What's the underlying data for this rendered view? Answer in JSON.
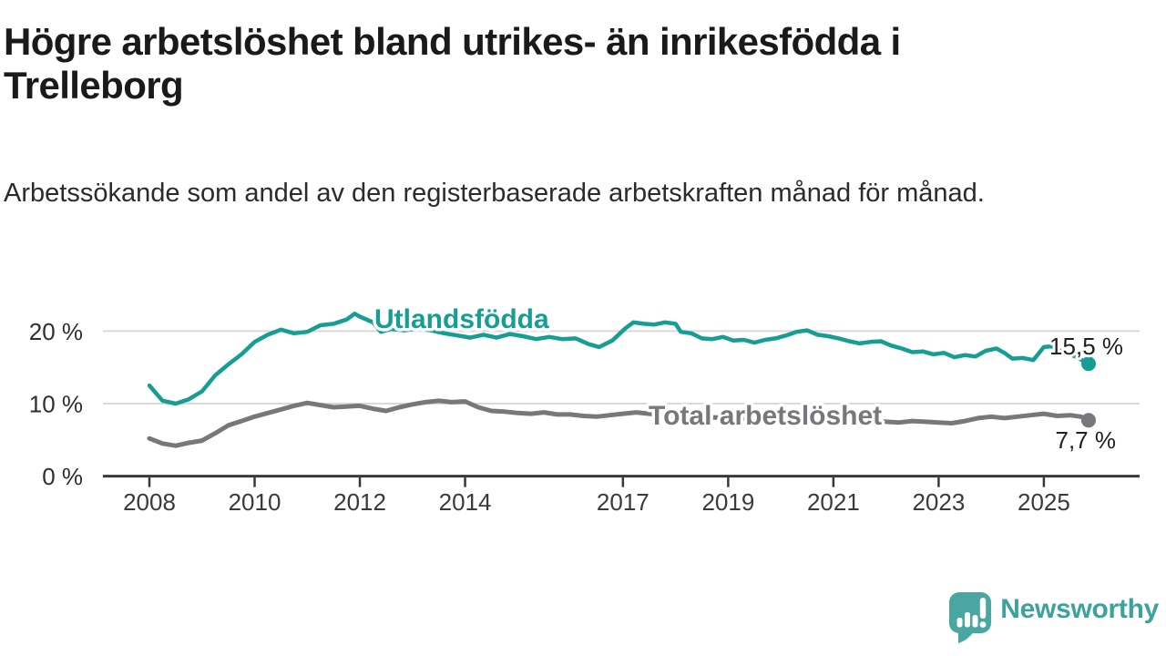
{
  "header": {
    "title": "Högre arbetslöshet bland utrikes- än inrikesfödda i Trelleborg",
    "subtitle": "Arbetssökande som andel av den registerbaserade arbetskraften månad för månad."
  },
  "chart_data": {
    "type": "line",
    "title": "Högre arbetslöshet bland utrikes- än inrikesfödda i Trelleborg",
    "subtitle": "Arbetssökande som andel av den registerbaserade arbetskraften månad för månad.",
    "x_axis": {
      "tick_years": [
        2008,
        2010,
        2012,
        2014,
        2017,
        2019,
        2021,
        2023,
        2025
      ],
      "tick_labels": [
        "2008",
        "2010",
        "2012",
        "2014",
        "2017",
        "2019",
        "2021",
        "2023",
        "2025"
      ],
      "range": [
        2007.1,
        2026.8
      ]
    },
    "y_axis": {
      "tick_values": [
        20,
        10,
        0
      ],
      "tick_labels": [
        "20 %",
        "10 %",
        "0 %"
      ],
      "gridlines": [
        20,
        10
      ],
      "range": [
        0,
        23
      ],
      "unit": "%"
    },
    "legend_position": "inline-labels",
    "grid": true,
    "series": [
      {
        "name": "Utlandsfödda",
        "color": "#169d94",
        "end_label": "15,5 %",
        "end_value": 15.5,
        "points": [
          [
            2008.0,
            12.5
          ],
          [
            2008.25,
            10.4
          ],
          [
            2008.5,
            10.0
          ],
          [
            2008.75,
            10.6
          ],
          [
            2009.0,
            11.7
          ],
          [
            2009.25,
            13.9
          ],
          [
            2009.5,
            15.4
          ],
          [
            2009.75,
            16.8
          ],
          [
            2010.0,
            18.5
          ],
          [
            2010.25,
            19.5
          ],
          [
            2010.5,
            20.2
          ],
          [
            2010.75,
            19.7
          ],
          [
            2011.0,
            19.9
          ],
          [
            2011.25,
            20.8
          ],
          [
            2011.5,
            21.0
          ],
          [
            2011.75,
            21.6
          ],
          [
            2011.9,
            22.4
          ],
          [
            2012.0,
            22.0
          ],
          [
            2012.25,
            21.2
          ],
          [
            2012.4,
            19.9
          ],
          [
            2012.6,
            20.3
          ],
          [
            2012.85,
            20.1
          ],
          [
            2013.1,
            20.4
          ],
          [
            2013.35,
            20.1
          ],
          [
            2013.6,
            19.7
          ],
          [
            2013.85,
            19.4
          ],
          [
            2014.1,
            19.1
          ],
          [
            2014.35,
            19.5
          ],
          [
            2014.6,
            19.1
          ],
          [
            2014.85,
            19.6
          ],
          [
            2015.1,
            19.3
          ],
          [
            2015.35,
            18.9
          ],
          [
            2015.6,
            19.2
          ],
          [
            2015.85,
            18.9
          ],
          [
            2016.1,
            19.0
          ],
          [
            2016.35,
            18.2
          ],
          [
            2016.55,
            17.8
          ],
          [
            2016.8,
            18.7
          ],
          [
            2017.05,
            20.4
          ],
          [
            2017.2,
            21.2
          ],
          [
            2017.4,
            21.0
          ],
          [
            2017.6,
            20.9
          ],
          [
            2017.8,
            21.2
          ],
          [
            2018.0,
            21.0
          ],
          [
            2018.1,
            19.9
          ],
          [
            2018.3,
            19.7
          ],
          [
            2018.5,
            19.0
          ],
          [
            2018.7,
            18.9
          ],
          [
            2018.9,
            19.2
          ],
          [
            2019.1,
            18.7
          ],
          [
            2019.3,
            18.8
          ],
          [
            2019.5,
            18.4
          ],
          [
            2019.7,
            18.8
          ],
          [
            2019.9,
            19.0
          ],
          [
            2020.1,
            19.4
          ],
          [
            2020.3,
            19.9
          ],
          [
            2020.5,
            20.1
          ],
          [
            2020.7,
            19.5
          ],
          [
            2020.9,
            19.3
          ],
          [
            2021.1,
            19.0
          ],
          [
            2021.3,
            18.6
          ],
          [
            2021.5,
            18.3
          ],
          [
            2021.7,
            18.5
          ],
          [
            2021.9,
            18.6
          ],
          [
            2022.1,
            18.0
          ],
          [
            2022.3,
            17.6
          ],
          [
            2022.5,
            17.1
          ],
          [
            2022.7,
            17.2
          ],
          [
            2022.9,
            16.8
          ],
          [
            2023.1,
            17.0
          ],
          [
            2023.3,
            16.4
          ],
          [
            2023.5,
            16.7
          ],
          [
            2023.7,
            16.5
          ],
          [
            2023.9,
            17.3
          ],
          [
            2024.1,
            17.6
          ],
          [
            2024.25,
            17.0
          ],
          [
            2024.4,
            16.2
          ],
          [
            2024.6,
            16.3
          ],
          [
            2024.8,
            16.0
          ],
          [
            2025.0,
            17.8
          ],
          [
            2025.15,
            17.9
          ],
          [
            2025.3,
            17.3
          ],
          [
            2025.45,
            16.9
          ],
          [
            2025.6,
            16.5
          ],
          [
            2025.75,
            15.9
          ],
          [
            2025.85,
            15.5
          ]
        ]
      },
      {
        "name": "Total arbetslöshet",
        "color": "#78787c",
        "end_label": "7,7 %",
        "end_value": 7.7,
        "points": [
          [
            2008.0,
            5.2
          ],
          [
            2008.25,
            4.5
          ],
          [
            2008.5,
            4.2
          ],
          [
            2008.75,
            4.6
          ],
          [
            2009.0,
            4.9
          ],
          [
            2009.25,
            5.9
          ],
          [
            2009.5,
            7.0
          ],
          [
            2009.75,
            7.6
          ],
          [
            2010.0,
            8.2
          ],
          [
            2010.25,
            8.7
          ],
          [
            2010.5,
            9.2
          ],
          [
            2010.75,
            9.7
          ],
          [
            2011.0,
            10.1
          ],
          [
            2011.25,
            9.8
          ],
          [
            2011.5,
            9.5
          ],
          [
            2011.75,
            9.6
          ],
          [
            2012.0,
            9.7
          ],
          [
            2012.25,
            9.3
          ],
          [
            2012.5,
            9.0
          ],
          [
            2012.75,
            9.5
          ],
          [
            2013.0,
            9.9
          ],
          [
            2013.25,
            10.2
          ],
          [
            2013.5,
            10.4
          ],
          [
            2013.75,
            10.2
          ],
          [
            2014.0,
            10.3
          ],
          [
            2014.25,
            9.5
          ],
          [
            2014.5,
            9.0
          ],
          [
            2014.75,
            8.9
          ],
          [
            2015.0,
            8.7
          ],
          [
            2015.25,
            8.6
          ],
          [
            2015.5,
            8.8
          ],
          [
            2015.75,
            8.5
          ],
          [
            2016.0,
            8.5
          ],
          [
            2016.25,
            8.3
          ],
          [
            2016.5,
            8.2
          ],
          [
            2016.75,
            8.4
          ],
          [
            2017.0,
            8.6
          ],
          [
            2017.25,
            8.8
          ],
          [
            2017.5,
            8.6
          ],
          [
            2017.75,
            8.4
          ],
          [
            2018.0,
            8.3
          ],
          [
            2018.25,
            8.1
          ],
          [
            2018.5,
            8.0
          ],
          [
            2018.75,
            8.1
          ],
          [
            2019.0,
            8.0
          ],
          [
            2019.25,
            7.9
          ],
          [
            2019.5,
            8.0
          ],
          [
            2019.75,
            8.1
          ],
          [
            2020.0,
            8.4
          ],
          [
            2020.25,
            8.8
          ],
          [
            2020.5,
            8.9
          ],
          [
            2020.75,
            8.6
          ],
          [
            2021.0,
            8.4
          ],
          [
            2021.25,
            8.1
          ],
          [
            2021.5,
            7.9
          ],
          [
            2021.75,
            7.7
          ],
          [
            2022.0,
            7.5
          ],
          [
            2022.25,
            7.4
          ],
          [
            2022.5,
            7.6
          ],
          [
            2022.75,
            7.5
          ],
          [
            2023.0,
            7.4
          ],
          [
            2023.25,
            7.3
          ],
          [
            2023.5,
            7.6
          ],
          [
            2023.75,
            8.0
          ],
          [
            2024.0,
            8.2
          ],
          [
            2024.25,
            8.0
          ],
          [
            2024.5,
            8.2
          ],
          [
            2024.75,
            8.4
          ],
          [
            2025.0,
            8.6
          ],
          [
            2025.25,
            8.3
          ],
          [
            2025.5,
            8.4
          ],
          [
            2025.7,
            8.2
          ],
          [
            2025.85,
            7.7
          ]
        ]
      }
    ]
  },
  "branding": {
    "logo_text": "Newsworthy",
    "logo_color": "#4aa6a0",
    "text_color": "#3ba29c"
  }
}
